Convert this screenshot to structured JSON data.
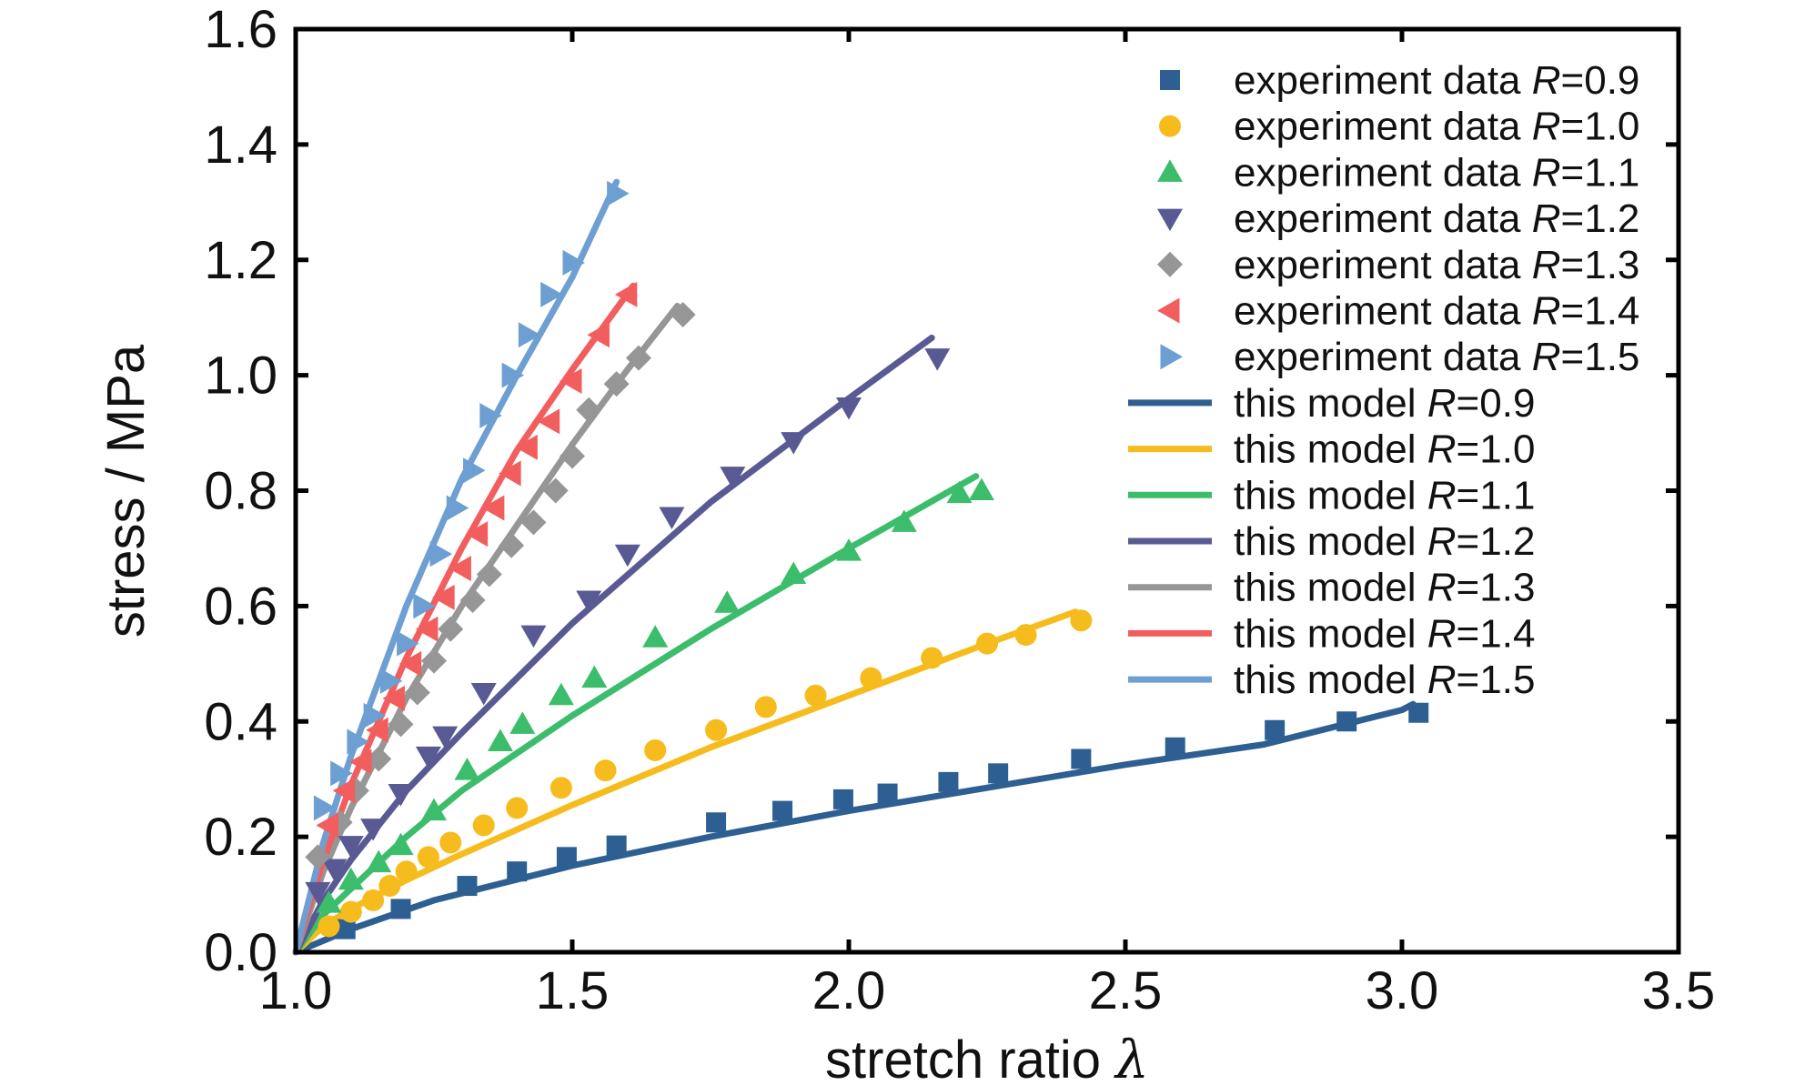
{
  "chart_data": {
    "type": "line",
    "title": "",
    "xlabel": "stretch ratio",
    "xlabel_symbol": "λ",
    "ylabel": "stress / MPa",
    "xlim": [
      1.0,
      3.5
    ],
    "ylim": [
      0.0,
      1.6
    ],
    "xticks": [
      "1.0",
      "1.5",
      "2.0",
      "2.5",
      "3.0",
      "3.5"
    ],
    "yticks": [
      "0.0",
      "0.2",
      "0.4",
      "0.6",
      "0.8",
      "1.0",
      "1.2",
      "1.4",
      "1.6"
    ],
    "grid": false,
    "legend_position": "top-right",
    "legend_prefix_data": "experiment data ",
    "legend_prefix_model": "this model ",
    "legend_symbol": "R",
    "series": [
      {
        "R": "=0.9",
        "color": "#2e5f92",
        "marker": "square",
        "data_x": [
          1.09,
          1.19,
          1.31,
          1.4,
          1.49,
          1.58,
          1.76,
          1.88,
          1.99,
          2.07,
          2.18,
          2.27,
          2.42,
          2.59,
          2.77,
          2.9,
          3.03
        ],
        "data_y": [
          0.04,
          0.075,
          0.115,
          0.14,
          0.165,
          0.185,
          0.225,
          0.245,
          0.265,
          0.275,
          0.295,
          0.31,
          0.335,
          0.355,
          0.385,
          0.4,
          0.415
        ],
        "model_x": [
          1.0,
          1.1,
          1.25,
          1.5,
          1.75,
          2.0,
          2.25,
          2.5,
          2.75,
          3.0,
          3.02
        ],
        "model_y": [
          0.0,
          0.04,
          0.09,
          0.15,
          0.2,
          0.245,
          0.285,
          0.325,
          0.36,
          0.42,
          0.43
        ]
      },
      {
        "R": "=1.0",
        "color": "#f6bb1c",
        "marker": "circle",
        "data_x": [
          1.06,
          1.1,
          1.14,
          1.17,
          1.2,
          1.24,
          1.28,
          1.34,
          1.4,
          1.48,
          1.56,
          1.65,
          1.76,
          1.85,
          1.94,
          2.04,
          2.15,
          2.25,
          2.32,
          2.42
        ],
        "data_y": [
          0.045,
          0.07,
          0.09,
          0.115,
          0.14,
          0.165,
          0.19,
          0.22,
          0.25,
          0.285,
          0.315,
          0.35,
          0.385,
          0.425,
          0.445,
          0.475,
          0.51,
          0.535,
          0.55,
          0.575
        ],
        "model_x": [
          1.0,
          1.05,
          1.1,
          1.2,
          1.3,
          1.5,
          1.75,
          2.0,
          2.25,
          2.41
        ],
        "model_y": [
          0.0,
          0.045,
          0.075,
          0.125,
          0.17,
          0.255,
          0.355,
          0.445,
          0.535,
          0.59
        ]
      },
      {
        "R": "=1.1",
        "color": "#3cbd6b",
        "marker": "triangle-up",
        "data_x": [
          1.06,
          1.1,
          1.15,
          1.19,
          1.25,
          1.31,
          1.37,
          1.41,
          1.48,
          1.54,
          1.65,
          1.78,
          1.9,
          2.0,
          2.1,
          2.2,
          2.24
        ],
        "data_y": [
          0.085,
          0.125,
          0.155,
          0.185,
          0.245,
          0.315,
          0.365,
          0.395,
          0.445,
          0.475,
          0.545,
          0.605,
          0.655,
          0.695,
          0.745,
          0.795,
          0.8
        ],
        "model_x": [
          1.0,
          1.05,
          1.1,
          1.2,
          1.3,
          1.5,
          1.75,
          2.0,
          2.23
        ],
        "model_y": [
          0.0,
          0.065,
          0.11,
          0.2,
          0.28,
          0.41,
          0.56,
          0.7,
          0.825
        ]
      },
      {
        "R": "=1.2",
        "color": "#595a93",
        "marker": "triangle-down",
        "data_x": [
          1.04,
          1.07,
          1.1,
          1.14,
          1.19,
          1.24,
          1.27,
          1.34,
          1.43,
          1.53,
          1.6,
          1.68,
          1.79,
          1.9,
          2.0,
          2.16
        ],
        "data_y": [
          0.105,
          0.145,
          0.185,
          0.215,
          0.275,
          0.34,
          0.375,
          0.45,
          0.55,
          0.61,
          0.69,
          0.755,
          0.825,
          0.885,
          0.945,
          1.03
        ],
        "model_x": [
          1.0,
          1.05,
          1.1,
          1.2,
          1.3,
          1.5,
          1.75,
          2.0,
          2.15
        ],
        "model_y": [
          0.0,
          0.09,
          0.16,
          0.28,
          0.38,
          0.57,
          0.78,
          0.96,
          1.065
        ]
      },
      {
        "R": "=1.3",
        "color": "#969696",
        "marker": "diamond",
        "data_x": [
          1.04,
          1.08,
          1.11,
          1.15,
          1.19,
          1.22,
          1.25,
          1.28,
          1.32,
          1.35,
          1.39,
          1.43,
          1.47,
          1.5,
          1.53,
          1.58,
          1.62,
          1.7
        ],
        "data_y": [
          0.165,
          0.225,
          0.28,
          0.335,
          0.395,
          0.45,
          0.505,
          0.56,
          0.61,
          0.655,
          0.705,
          0.745,
          0.8,
          0.86,
          0.94,
          0.985,
          1.03,
          1.105
        ],
        "model_x": [
          1.0,
          1.05,
          1.1,
          1.2,
          1.3,
          1.4,
          1.5,
          1.6,
          1.69
        ],
        "model_y": [
          0.0,
          0.14,
          0.25,
          0.44,
          0.6,
          0.74,
          0.88,
          1.01,
          1.12
        ]
      },
      {
        "R": "=1.4",
        "color": "#f25d5d",
        "marker": "triangle-left",
        "data_x": [
          1.06,
          1.09,
          1.12,
          1.15,
          1.18,
          1.21,
          1.24,
          1.27,
          1.3,
          1.33,
          1.36,
          1.39,
          1.42,
          1.46,
          1.5,
          1.55,
          1.6
        ],
        "data_y": [
          0.22,
          0.28,
          0.33,
          0.385,
          0.44,
          0.5,
          0.56,
          0.615,
          0.665,
          0.725,
          0.77,
          0.83,
          0.875,
          0.92,
          0.99,
          1.07,
          1.14
        ],
        "model_x": [
          1.0,
          1.05,
          1.1,
          1.2,
          1.3,
          1.4,
          1.5,
          1.61
        ],
        "model_y": [
          0.0,
          0.16,
          0.29,
          0.51,
          0.7,
          0.87,
          1.01,
          1.155
        ]
      },
      {
        "R": "=1.5",
        "color": "#6e9fd2",
        "marker": "triangle-right",
        "data_x": [
          1.05,
          1.08,
          1.11,
          1.14,
          1.17,
          1.2,
          1.23,
          1.26,
          1.29,
          1.32,
          1.35,
          1.39,
          1.42,
          1.46,
          1.5,
          1.58
        ],
        "data_y": [
          0.25,
          0.31,
          0.365,
          0.41,
          0.47,
          0.535,
          0.6,
          0.69,
          0.77,
          0.835,
          0.93,
          1.0,
          1.07,
          1.14,
          1.195,
          1.315
        ],
        "model_x": [
          1.0,
          1.05,
          1.1,
          1.2,
          1.3,
          1.4,
          1.5,
          1.58
        ],
        "model_y": [
          0.0,
          0.19,
          0.34,
          0.6,
          0.82,
          1.0,
          1.17,
          1.335
        ]
      }
    ]
  }
}
